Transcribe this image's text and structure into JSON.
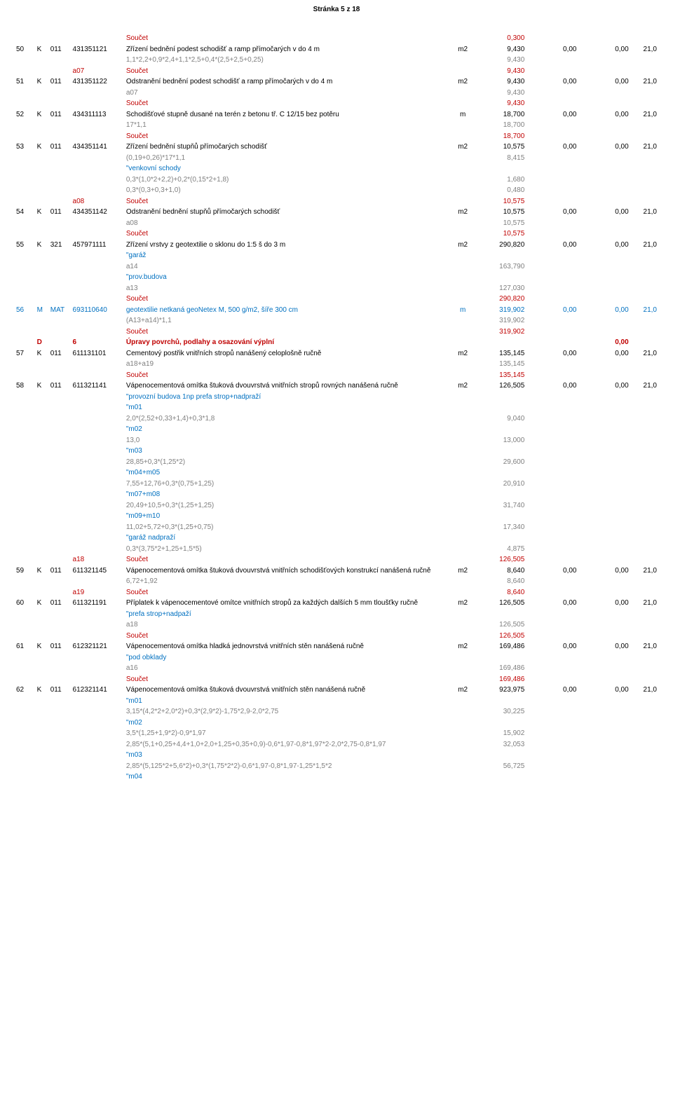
{
  "header": "Stránka 5 z 18",
  "cols": [
    "pc",
    "tp",
    "kt",
    "kod",
    "text",
    "mj",
    "qty",
    "jc",
    "cc",
    "h"
  ],
  "rows": [
    {
      "cls": "row-sum",
      "text": "Součet",
      "qty": "0,300"
    },
    {
      "cls": "row-item",
      "pc": "50",
      "tp": "K",
      "kt": "011",
      "kod": "431351121",
      "text": "Zřízení bednění podest schodišť a ramp přímočarých v do 4 m",
      "mj": "m2",
      "qty": "9,430",
      "jc": "0,00",
      "cc": "0,00",
      "h": "21,0"
    },
    {
      "cls": "row-exp",
      "text": "1,1*2,2+0,9*2,4+1,1*2,5+0,4*(2,5+2,5+0,25)",
      "qty": "9,430"
    },
    {
      "cls": "row-sum",
      "kod": "a07",
      "text": "Součet",
      "qty": "9,430"
    },
    {
      "cls": "row-item",
      "pc": "51",
      "tp": "K",
      "kt": "011",
      "kod": "431351122",
      "text": "Odstranění bednění podest schodišť a ramp přímočarých v do 4 m",
      "mj": "m2",
      "qty": "9,430",
      "jc": "0,00",
      "cc": "0,00",
      "h": "21,0"
    },
    {
      "cls": "row-exp",
      "text": "a07",
      "qty": "9,430"
    },
    {
      "cls": "row-sum",
      "text": "Součet",
      "qty": "9,430"
    },
    {
      "cls": "row-item",
      "pc": "52",
      "tp": "K",
      "kt": "011",
      "kod": "434311113",
      "text": "Schodišťové stupně dusané na terén z betonu tř. C 12/15 bez potěru",
      "mj": "m",
      "qty": "18,700",
      "jc": "0,00",
      "cc": "0,00",
      "h": "21,0"
    },
    {
      "cls": "row-exp",
      "text": "17*1,1",
      "qty": "18,700"
    },
    {
      "cls": "row-sum",
      "text": "Součet",
      "qty": "18,700"
    },
    {
      "cls": "row-item",
      "pc": "53",
      "tp": "K",
      "kt": "011",
      "kod": "434351141",
      "text": "Zřízení bednění stupňů přímočarých schodišť",
      "mj": "m2",
      "qty": "10,575",
      "jc": "0,00",
      "cc": "0,00",
      "h": "21,0"
    },
    {
      "cls": "row-exp",
      "text": "(0,19+0,26)*17*1,1",
      "qty": "8,415"
    },
    {
      "cls": "row-cmt",
      "text": "\"venkovní schody"
    },
    {
      "cls": "row-exp",
      "text": "0,3*(1,0*2+2,2)+0,2*(0,15*2+1,8)",
      "qty": "1,680"
    },
    {
      "cls": "row-exp",
      "text": "0,3*(0,3+0,3+1,0)",
      "qty": "0,480"
    },
    {
      "cls": "row-sum",
      "kod": "a08",
      "text": "Součet",
      "qty": "10,575"
    },
    {
      "cls": "row-item",
      "pc": "54",
      "tp": "K",
      "kt": "011",
      "kod": "434351142",
      "text": "Odstranění bednění stupňů přímočarých schodišť",
      "mj": "m2",
      "qty": "10,575",
      "jc": "0,00",
      "cc": "0,00",
      "h": "21,0"
    },
    {
      "cls": "row-exp",
      "text": "a08",
      "qty": "10,575"
    },
    {
      "cls": "row-sum",
      "text": "Součet",
      "qty": "10,575"
    },
    {
      "cls": "row-item",
      "pc": "55",
      "tp": "K",
      "kt": "321",
      "kod": "457971111",
      "text": "Zřízení vrstvy z geotextilie o sklonu do 1:5 š do 3 m",
      "mj": "m2",
      "qty": "290,820",
      "jc": "0,00",
      "cc": "0,00",
      "h": "21,0"
    },
    {
      "cls": "row-cmt",
      "text": "\"garáž"
    },
    {
      "cls": "row-exp",
      "text": "a14",
      "qty": "163,790"
    },
    {
      "cls": "row-cmt",
      "text": "\"prov.budova"
    },
    {
      "cls": "row-exp",
      "text": "a13",
      "qty": "127,030"
    },
    {
      "cls": "row-sum",
      "text": "Součet",
      "qty": "290,820"
    },
    {
      "cls": "row-mat",
      "pc": "56",
      "tp": "M",
      "kt": "MAT",
      "kod": "693110640",
      "text": "geotextilie netkaná geoNetex M, 500 g/m2, šíře 300 cm",
      "mj": "m",
      "qty": "319,902",
      "jc": "0,00",
      "cc": "0,00",
      "h": "21,0"
    },
    {
      "cls": "row-exp",
      "text": "(A13+a14)*1,1",
      "qty": "319,902"
    },
    {
      "cls": "row-sum",
      "text": "Součet",
      "qty": "319,902"
    },
    {
      "cls": "row-sec",
      "tp": "D",
      "kod": "6",
      "text": "Úpravy povrchů, podlahy a osazování výplní",
      "cc": "0,00"
    },
    {
      "cls": "row-item",
      "pc": "57",
      "tp": "K",
      "kt": "011",
      "kod": "611131101",
      "text": "Cementový postřik vnitřních stropů nanášený celoplošně ručně",
      "mj": "m2",
      "qty": "135,145",
      "jc": "0,00",
      "cc": "0,00",
      "h": "21,0"
    },
    {
      "cls": "row-exp",
      "text": "a18+a19",
      "qty": "135,145"
    },
    {
      "cls": "row-sum",
      "text": "Součet",
      "qty": "135,145"
    },
    {
      "cls": "row-item",
      "pc": "58",
      "tp": "K",
      "kt": "011",
      "kod": "611321141",
      "text": "Vápenocementová omítka štuková dvouvrstvá vnitřních stropů rovných nanášená ručně",
      "mj": "m2",
      "qty": "126,505",
      "jc": "0,00",
      "cc": "0,00",
      "h": "21,0"
    },
    {
      "cls": "row-cmt",
      "text": "\"provozní budova 1np prefa strop+nadpraží"
    },
    {
      "cls": "row-cmt",
      "text": "\"m01"
    },
    {
      "cls": "row-exp",
      "text": "2,0*(2,52+0,33+1,4)+0,3*1,8",
      "qty": "9,040"
    },
    {
      "cls": "row-cmt",
      "text": "\"m02"
    },
    {
      "cls": "row-exp",
      "text": "13,0",
      "qty": "13,000"
    },
    {
      "cls": "row-cmt",
      "text": "\"m03"
    },
    {
      "cls": "row-exp",
      "text": "28,85+0,3*(1,25*2)",
      "qty": "29,600"
    },
    {
      "cls": "row-cmt",
      "text": "\"m04+m05"
    },
    {
      "cls": "row-exp",
      "text": "7,55+12,76+0,3*(0,75+1,25)",
      "qty": "20,910"
    },
    {
      "cls": "row-cmt",
      "text": "\"m07+m08"
    },
    {
      "cls": "row-exp",
      "text": "20,49+10,5+0,3*(1,25+1,25)",
      "qty": "31,740"
    },
    {
      "cls": "row-cmt",
      "text": "\"m09+m10"
    },
    {
      "cls": "row-exp",
      "text": "11,02+5,72+0,3*(1,25+0,75)",
      "qty": "17,340"
    },
    {
      "cls": "row-cmt",
      "text": "\"garáž nadpraží"
    },
    {
      "cls": "row-exp",
      "text": "0,3*(3,75*2+1,25+1,5*5)",
      "qty": "4,875"
    },
    {
      "cls": "row-sum",
      "kod": "a18",
      "text": "Součet",
      "qty": "126,505"
    },
    {
      "cls": "row-item",
      "pc": "59",
      "tp": "K",
      "kt": "011",
      "kod": "611321145",
      "text": "Vápenocementová omítka štuková dvouvrstvá vnitřních schodišťových konstrukcí nanášená ručně",
      "mj": "m2",
      "qty": "8,640",
      "jc": "0,00",
      "cc": "0,00",
      "h": "21,0"
    },
    {
      "cls": "row-exp",
      "text": "6,72+1,92",
      "qty": "8,640"
    },
    {
      "cls": "row-sum",
      "kod": "a19",
      "text": "Součet",
      "qty": "8,640"
    },
    {
      "cls": "row-item",
      "pc": "60",
      "tp": "K",
      "kt": "011",
      "kod": "611321191",
      "text": "Příplatek k vápenocementové omítce vnitřních stropů za každých dalších 5 mm tloušťky ručně",
      "mj": "m2",
      "qty": "126,505",
      "jc": "0,00",
      "cc": "0,00",
      "h": "21,0"
    },
    {
      "cls": "row-cmt",
      "text": "\"prefa strop+nadpaží"
    },
    {
      "cls": "row-exp",
      "text": "a18",
      "qty": "126,505"
    },
    {
      "cls": "row-sum",
      "text": "Součet",
      "qty": "126,505"
    },
    {
      "cls": "row-item",
      "pc": "61",
      "tp": "K",
      "kt": "011",
      "kod": "612321121",
      "text": "Vápenocementová omítka hladká jednovrstvá vnitřních stěn nanášená ručně",
      "mj": "m2",
      "qty": "169,486",
      "jc": "0,00",
      "cc": "0,00",
      "h": "21,0"
    },
    {
      "cls": "row-cmt",
      "text": "\"pod obklady"
    },
    {
      "cls": "row-exp",
      "text": "a16",
      "qty": "169,486"
    },
    {
      "cls": "row-sum",
      "text": "Součet",
      "qty": "169,486"
    },
    {
      "cls": "row-item",
      "pc": "62",
      "tp": "K",
      "kt": "011",
      "kod": "612321141",
      "text": "Vápenocementová omítka štuková dvouvrstvá vnitřních stěn nanášená ručně",
      "mj": "m2",
      "qty": "923,975",
      "jc": "0,00",
      "cc": "0,00",
      "h": "21,0"
    },
    {
      "cls": "row-cmt",
      "text": "\"m01"
    },
    {
      "cls": "row-exp",
      "text": "3,15*(4,2*2+2,0*2)+0,3*(2,9*2)-1,75*2,9-2,0*2,75",
      "qty": "30,225"
    },
    {
      "cls": "row-cmt",
      "text": "\"m02"
    },
    {
      "cls": "row-exp",
      "text": "3,5*(1,25+1,9*2)-0,9*1,97",
      "qty": "15,902"
    },
    {
      "cls": "row-exp",
      "text": "2,85*(5,1+0,25+4,4+1,0+2,0+1,25+0,35+0,9)-0,6*1,97-0,8*1,97*2-2,0*2,75-0,8*1,97",
      "qty": "32,053"
    },
    {
      "cls": "row-cmt",
      "text": "\"m03"
    },
    {
      "cls": "row-exp",
      "text": "2,85*(5,125*2+5,6*2)+0,3*(1,75*2*2)-0,6*1,97-0,8*1,97-1,25*1,5*2",
      "qty": "56,725"
    },
    {
      "cls": "row-cmt",
      "text": "\"m04"
    }
  ]
}
